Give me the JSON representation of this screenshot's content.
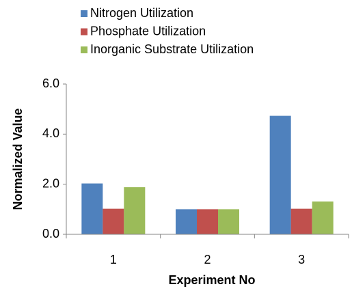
{
  "chart_data": {
    "type": "bar",
    "categories": [
      "1",
      "2",
      "3"
    ],
    "series": [
      {
        "name": "Nitrogen Utilization",
        "color": "#4f81bd",
        "values": [
          2.03,
          1.0,
          4.73
        ]
      },
      {
        "name": "Phosphate Utilization",
        "color": "#c0504d",
        "values": [
          1.02,
          1.0,
          1.02
        ]
      },
      {
        "name": "Inorganic Substrate Utilization",
        "color": "#9bbb59",
        "values": [
          1.88,
          1.0,
          1.31
        ]
      }
    ],
    "x_label": "Experiment No",
    "y_label": "Normalized Value",
    "ylim": [
      0,
      6
    ],
    "yticks": [
      {
        "value": 0,
        "label": "0.0"
      },
      {
        "value": 2,
        "label": "2.0"
      },
      {
        "value": 4,
        "label": "4.0"
      },
      {
        "value": 6,
        "label": "6.0"
      }
    ],
    "grid": false,
    "legend": "top"
  }
}
